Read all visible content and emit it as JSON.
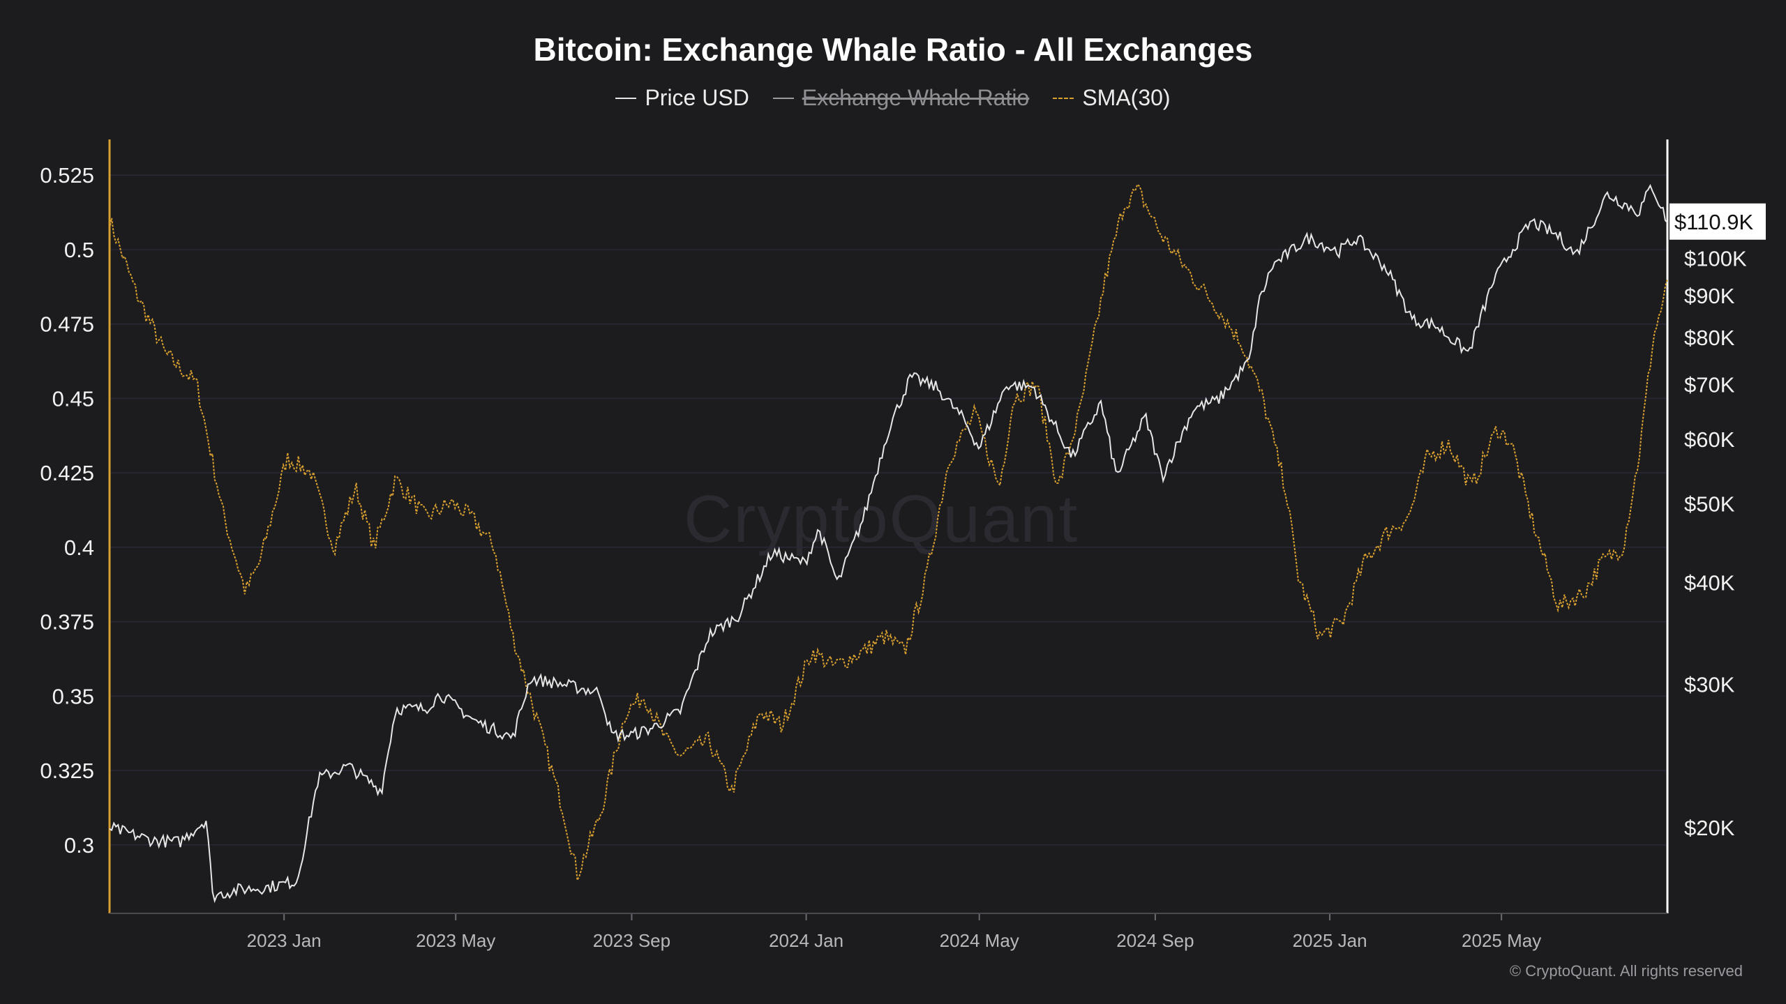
{
  "chart_data": {
    "type": "line",
    "title": "Bitcoin: Exchange Whale Ratio - All Exchanges",
    "legend": {
      "placement": "top-center",
      "items": [
        {
          "label": "Price USD",
          "color": "#e6e6e6",
          "style": "solid",
          "hidden": false
        },
        {
          "label": "Exchange Whale Ratio",
          "color": "#9a9aa0",
          "style": "solid",
          "hidden": true
        },
        {
          "label": "SMA(30)",
          "color": "#d9a030",
          "style": "dashed",
          "hidden": false
        }
      ]
    },
    "x_ticks": [
      "2023 Jan",
      "2023 May",
      "2023 Sep",
      "2024 Jan",
      "2024 May",
      "2024 Sep",
      "2025 Jan",
      "2025 May"
    ],
    "x_range": [
      "2022-09-01",
      "2025-08-25"
    ],
    "y_left": {
      "ticks": [
        "0.3",
        "0.325",
        "0.35",
        "0.375",
        "0.4",
        "0.425",
        "0.45",
        "0.475",
        "0.5",
        "0.525"
      ],
      "range": [
        0.277,
        0.537
      ]
    },
    "y_right": {
      "scale": "log",
      "ticks": [
        {
          "value": 20000,
          "label": "$20K"
        },
        {
          "value": 30000,
          "label": "$30K"
        },
        {
          "value": 40000,
          "label": "$40K"
        },
        {
          "value": 50000,
          "label": "$50K"
        },
        {
          "value": 60000,
          "label": "$60K"
        },
        {
          "value": 70000,
          "label": "$70K"
        },
        {
          "value": 80000,
          "label": "$80K"
        },
        {
          "value": 90000,
          "label": "$90K"
        },
        {
          "value": 100000,
          "label": "$100K"
        }
      ],
      "range": [
        15700,
        140000
      ],
      "current_label": "$110.9K"
    },
    "series": [
      {
        "name": "Price USD",
        "axis": "right",
        "x": [
          "2022-09-01",
          "2022-10-01",
          "2022-10-20",
          "2022-11-08",
          "2022-11-12",
          "2022-12-01",
          "2022-12-20",
          "2023-01-10",
          "2023-01-25",
          "2023-02-15",
          "2023-03-10",
          "2023-03-20",
          "2023-04-10",
          "2023-04-20",
          "2023-05-15",
          "2023-06-10",
          "2023-06-22",
          "2023-07-15",
          "2023-08-10",
          "2023-08-18",
          "2023-09-01",
          "2023-09-15",
          "2023-10-05",
          "2023-10-25",
          "2023-11-15",
          "2023-12-08",
          "2023-12-31",
          "2024-01-10",
          "2024-01-23",
          "2024-02-10",
          "2024-02-28",
          "2024-03-14",
          "2024-04-01",
          "2024-04-20",
          "2024-05-01",
          "2024-05-20",
          "2024-06-08",
          "2024-07-05",
          "2024-07-25",
          "2024-08-05",
          "2024-08-25",
          "2024-09-06",
          "2024-09-28",
          "2024-10-15",
          "2024-10-29",
          "2024-11-06",
          "2024-11-12",
          "2024-11-22",
          "2024-12-17",
          "2025-01-07",
          "2025-01-20",
          "2025-02-10",
          "2025-02-28",
          "2025-03-15",
          "2025-04-08",
          "2025-04-25",
          "2025-05-10",
          "2025-05-22",
          "2025-06-10",
          "2025-06-22",
          "2025-07-14",
          "2025-08-05",
          "2025-08-14",
          "2025-08-25"
        ],
        "values": [
          20000,
          19300,
          19200,
          20500,
          16500,
          16800,
          16900,
          17200,
          23000,
          23800,
          22200,
          28000,
          28000,
          29200,
          27000,
          25800,
          30500,
          30000,
          29300,
          26000,
          26000,
          26500,
          27800,
          34500,
          36500,
          43500,
          42300,
          46500,
          39900,
          48000,
          62000,
          71500,
          69500,
          63500,
          58500,
          70000,
          69500,
          57000,
          66500,
          54000,
          64000,
          54000,
          65500,
          67000,
          72000,
          75000,
          88000,
          98000,
          106000,
          102000,
          106000,
          97000,
          84000,
          83000,
          76500,
          93500,
          103500,
          111000,
          106500,
          101000,
          120000,
          114000,
          123000,
          111000
        ]
      },
      {
        "name": "SMA(30)",
        "axis": "left",
        "x": [
          "2022-09-01",
          "2022-09-20",
          "2022-10-10",
          "2022-11-01",
          "2022-11-20",
          "2022-12-05",
          "2022-12-15",
          "2023-01-03",
          "2023-01-20",
          "2023-02-05",
          "2023-02-20",
          "2023-03-05",
          "2023-03-20",
          "2023-04-10",
          "2023-04-28",
          "2023-05-12",
          "2023-05-28",
          "2023-06-10",
          "2023-06-25",
          "2023-07-15",
          "2023-07-25",
          "2023-08-10",
          "2023-08-28",
          "2023-09-10",
          "2023-09-25",
          "2023-10-05",
          "2023-10-25",
          "2023-11-10",
          "2023-11-30",
          "2023-12-15",
          "2024-01-05",
          "2024-01-20",
          "2024-02-10",
          "2024-02-25",
          "2024-03-10",
          "2024-03-25",
          "2024-04-10",
          "2024-04-28",
          "2024-05-15",
          "2024-05-25",
          "2024-06-10",
          "2024-06-25",
          "2024-07-10",
          "2024-07-28",
          "2024-08-10",
          "2024-08-20",
          "2024-09-05",
          "2024-09-25",
          "2024-10-15",
          "2024-11-01",
          "2024-11-15",
          "2024-12-01",
          "2024-12-10",
          "2024-12-25",
          "2025-01-10",
          "2025-01-25",
          "2025-02-10",
          "2025-02-25",
          "2025-03-10",
          "2025-03-25",
          "2025-04-10",
          "2025-04-28",
          "2025-05-08",
          "2025-05-22",
          "2025-06-10",
          "2025-06-28",
          "2025-07-10",
          "2025-07-25",
          "2025-08-05",
          "2025-08-15",
          "2025-08-25"
        ],
        "values": [
          0.51,
          0.485,
          0.465,
          0.455,
          0.41,
          0.385,
          0.395,
          0.43,
          0.425,
          0.4,
          0.42,
          0.4,
          0.423,
          0.41,
          0.415,
          0.41,
          0.4,
          0.37,
          0.345,
          0.312,
          0.29,
          0.31,
          0.345,
          0.35,
          0.335,
          0.33,
          0.335,
          0.318,
          0.345,
          0.34,
          0.365,
          0.36,
          0.365,
          0.37,
          0.365,
          0.39,
          0.43,
          0.445,
          0.42,
          0.45,
          0.455,
          0.42,
          0.445,
          0.49,
          0.515,
          0.52,
          0.505,
          0.492,
          0.48,
          0.468,
          0.45,
          0.42,
          0.39,
          0.37,
          0.375,
          0.395,
          0.405,
          0.41,
          0.43,
          0.435,
          0.42,
          0.44,
          0.435,
          0.41,
          0.38,
          0.385,
          0.395,
          0.4,
          0.43,
          0.47,
          0.488
        ]
      }
    ],
    "watermark": "CryptoQuant"
  },
  "footer": {
    "copyright": "© CryptoQuant. All rights reserved"
  },
  "colors": {
    "background": "#1c1c1e",
    "price_line": "#e6e6e6",
    "sma_line": "#d9a030",
    "left_axis": "#d9a030",
    "right_axis": "#ffffff",
    "grid": "#282838"
  }
}
